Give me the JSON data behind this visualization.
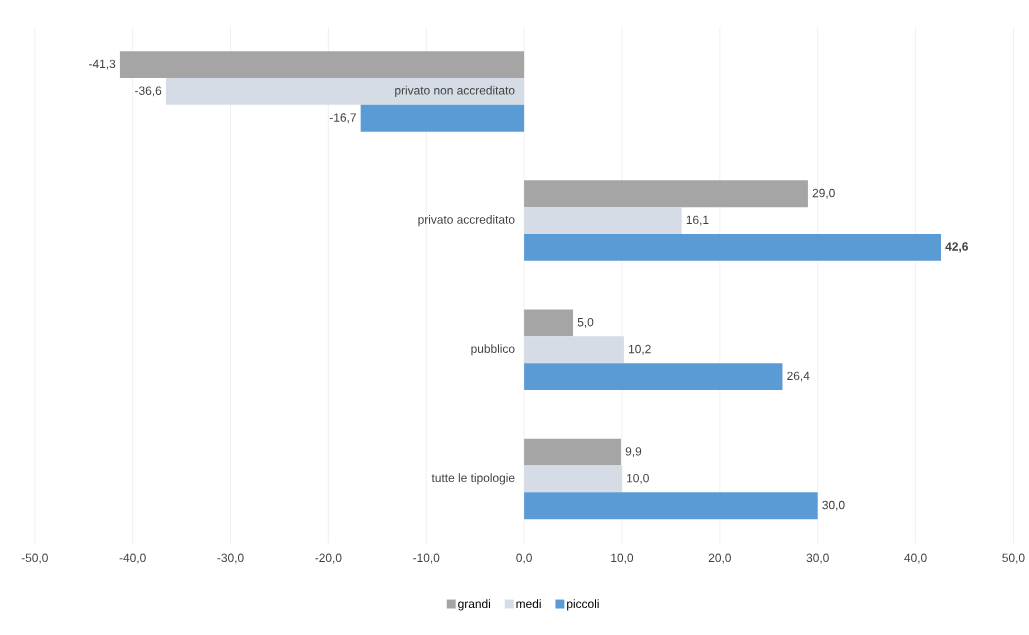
{
  "chart_data": {
    "type": "bar",
    "orientation": "horizontal",
    "categories": [
      "privato non accreditato",
      "privato accreditato",
      "pubblico",
      "tutte le tipologie"
    ],
    "series": [
      {
        "name": "grandi",
        "color": "#a5a5a5",
        "values": [
          -41.3,
          29.0,
          5.0,
          9.9
        ],
        "value_labels": [
          "-41,3",
          "29,0",
          "5,0",
          "9,9"
        ]
      },
      {
        "name": "medi",
        "color": "#d6dce5",
        "values": [
          -36.6,
          16.1,
          10.2,
          10.0
        ],
        "value_labels": [
          "-36,6",
          "16,1",
          "10,2",
          "10,0"
        ]
      },
      {
        "name": "piccoli",
        "color": "#5b9bd5",
        "values": [
          -16.7,
          42.6,
          26.4,
          30.0
        ],
        "value_labels": [
          "-16,7",
          "**42,6**",
          "26,4",
          "30,0"
        ]
      }
    ],
    "xlim": [
      -50,
      50
    ],
    "xticks": [
      {
        "value": -50,
        "label": "-50,0"
      },
      {
        "value": -40,
        "label": "-40,0"
      },
      {
        "value": -30,
        "label": "-30,0"
      },
      {
        "value": -20,
        "label": "-20,0"
      },
      {
        "value": -10,
        "label": "-10,0"
      },
      {
        "value": 0,
        "label": "0,0"
      },
      {
        "value": 10,
        "label": "10,0"
      },
      {
        "value": 20,
        "label": "20,0"
      },
      {
        "value": 30,
        "label": "30,0"
      },
      {
        "value": 40,
        "label": "40,0"
      },
      {
        "value": 50,
        "label": "50,0"
      }
    ],
    "grid": "x",
    "legend": "bottom"
  }
}
